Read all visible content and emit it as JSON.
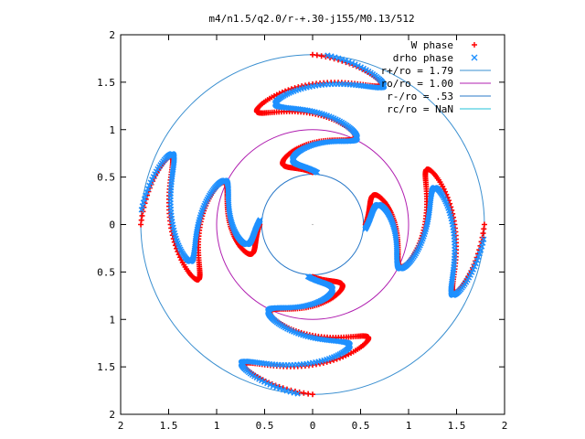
{
  "chart_data": {
    "type": "scatter",
    "title": "m4/n1.5/q2.0/r-+.30-j155/M0.13/512",
    "xlabel": "",
    "ylabel": "",
    "xlim": [
      -2,
      2
    ],
    "ylim": [
      -2,
      2
    ],
    "grid": false,
    "legend_position": "top-right",
    "x_tick_values": [
      -2,
      -1.5,
      -1,
      -0.5,
      0,
      0.5,
      1,
      1.5,
      2
    ],
    "x_tick_labels": [
      "2",
      "1.5",
      "1",
      "0.5",
      "0",
      "0.5",
      "1",
      "1.5",
      "2"
    ],
    "y_tick_values": [
      2,
      1.5,
      1,
      0.5,
      0,
      -0.5,
      -1,
      -1.5,
      -2
    ],
    "y_tick_labels": [
      "2",
      "1.5",
      "1",
      "0.5",
      "0",
      "0.5",
      "1",
      "1.5",
      "2"
    ],
    "series": [
      {
        "name": "W phase",
        "marker": "plus",
        "color": "#ff0000",
        "mode": 4,
        "r_start": 0.55,
        "r_end": 1.79,
        "base_angle_deg": 90,
        "phase_offset_deg": 0,
        "winding_deg": 0,
        "wiggle_amp_deg": 26,
        "wiggle_cycles": 2.0,
        "points_per_arm": 220
      },
      {
        "name": "drho phase",
        "marker": "x",
        "color": "#1e90ff",
        "mode": 4,
        "r_start": 0.55,
        "r_end": 1.79,
        "base_angle_deg": 90,
        "phase_offset_deg": -5,
        "winding_deg": 0,
        "wiggle_amp_deg": 22,
        "wiggle_cycles": 2.0,
        "points_per_arm": 220
      }
    ],
    "circles": [
      {
        "name": "r+/ro = 1.79",
        "r": 1.79,
        "color": "#3a8fd0"
      },
      {
        "name": "ro/ro = 1.00",
        "r": 1.0,
        "color": "#b01fb0"
      },
      {
        "name": "r-/ro = .53",
        "r": 0.53,
        "color": "#2878c8"
      },
      {
        "name": "rc/ro = NaN",
        "r": null,
        "color": "#20c0d8"
      }
    ]
  }
}
